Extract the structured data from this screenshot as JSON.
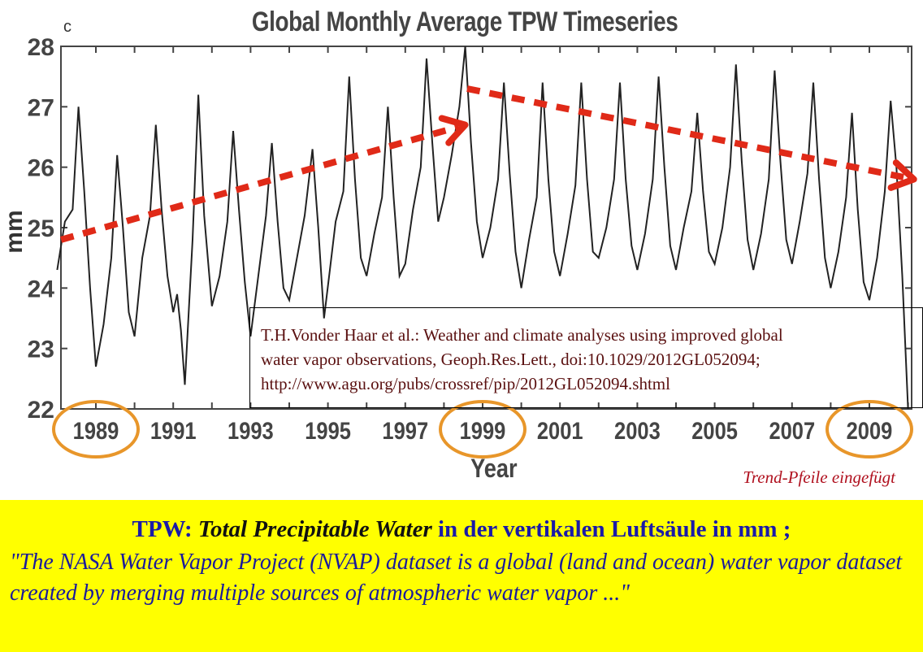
{
  "chart_data": {
    "type": "line",
    "panel_label": "c",
    "title": "Global Monthly Average TPW Timeseries",
    "xlabel": "Year",
    "ylabel": "mm",
    "ylim": [
      22,
      28
    ],
    "xlim": [
      1988,
      2010.2
    ],
    "yticks": [
      22,
      23,
      24,
      25,
      26,
      27,
      28
    ],
    "xticks": [
      "1989",
      "1991",
      "1993",
      "1995",
      "1997",
      "1999",
      "2001",
      "2003",
      "2005",
      "2007",
      "2009"
    ],
    "circled_years": [
      "1989",
      "1999",
      "2009"
    ],
    "grid": false,
    "series": [
      {
        "color": "#222222",
        "points": [
          [
            1988.0,
            24.3
          ],
          [
            1988.2,
            25.1
          ],
          [
            1988.4,
            25.3
          ],
          [
            1988.55,
            27.0
          ],
          [
            1988.7,
            25.6
          ],
          [
            1988.85,
            24.0
          ],
          [
            1989.0,
            22.7
          ],
          [
            1989.2,
            23.4
          ],
          [
            1989.4,
            24.5
          ],
          [
            1989.55,
            26.2
          ],
          [
            1989.7,
            25.0
          ],
          [
            1989.85,
            23.6
          ],
          [
            1990.0,
            23.2
          ],
          [
            1990.2,
            24.5
          ],
          [
            1990.4,
            25.2
          ],
          [
            1990.55,
            26.7
          ],
          [
            1990.7,
            25.3
          ],
          [
            1990.85,
            24.2
          ],
          [
            1991.0,
            23.6
          ],
          [
            1991.1,
            23.9
          ],
          [
            1991.2,
            23.3
          ],
          [
            1991.3,
            22.4
          ],
          [
            1991.5,
            24.8
          ],
          [
            1991.65,
            27.2
          ],
          [
            1991.8,
            25.2
          ],
          [
            1992.0,
            23.7
          ],
          [
            1992.2,
            24.2
          ],
          [
            1992.4,
            25.1
          ],
          [
            1992.55,
            26.6
          ],
          [
            1992.7,
            25.3
          ],
          [
            1992.85,
            24.1
          ],
          [
            1993.0,
            23.2
          ],
          [
            1993.2,
            24.2
          ],
          [
            1993.4,
            25.2
          ],
          [
            1993.55,
            26.4
          ],
          [
            1993.7,
            25.1
          ],
          [
            1993.85,
            24.0
          ],
          [
            1994.0,
            23.8
          ],
          [
            1994.2,
            24.5
          ],
          [
            1994.4,
            25.2
          ],
          [
            1994.6,
            26.3
          ],
          [
            1994.75,
            25.0
          ],
          [
            1994.9,
            23.5
          ],
          [
            1995.05,
            24.3
          ],
          [
            1995.2,
            25.1
          ],
          [
            1995.4,
            25.6
          ],
          [
            1995.55,
            27.5
          ],
          [
            1995.7,
            25.8
          ],
          [
            1995.85,
            24.5
          ],
          [
            1996.0,
            24.2
          ],
          [
            1996.2,
            24.9
          ],
          [
            1996.4,
            25.5
          ],
          [
            1996.55,
            27.0
          ],
          [
            1996.7,
            25.5
          ],
          [
            1996.85,
            24.2
          ],
          [
            1997.0,
            24.4
          ],
          [
            1997.2,
            25.3
          ],
          [
            1997.4,
            26.0
          ],
          [
            1997.55,
            27.8
          ],
          [
            1997.7,
            26.4
          ],
          [
            1997.85,
            25.1
          ],
          [
            1998.0,
            25.5
          ],
          [
            1998.2,
            26.2
          ],
          [
            1998.4,
            27.0
          ],
          [
            1998.55,
            28.0
          ],
          [
            1998.7,
            26.4
          ],
          [
            1998.85,
            25.1
          ],
          [
            1999.0,
            24.5
          ],
          [
            1999.2,
            25.0
          ],
          [
            1999.4,
            25.8
          ],
          [
            1999.55,
            27.4
          ],
          [
            1999.7,
            25.9
          ],
          [
            1999.85,
            24.6
          ],
          [
            2000.0,
            24.0
          ],
          [
            2000.2,
            24.8
          ],
          [
            2000.4,
            25.5
          ],
          [
            2000.55,
            27.4
          ],
          [
            2000.7,
            25.8
          ],
          [
            2000.85,
            24.6
          ],
          [
            2001.0,
            24.2
          ],
          [
            2001.2,
            24.9
          ],
          [
            2001.4,
            25.7
          ],
          [
            2001.55,
            27.4
          ],
          [
            2001.7,
            25.8
          ],
          [
            2001.85,
            24.6
          ],
          [
            2002.0,
            24.5
          ],
          [
            2002.2,
            25.0
          ],
          [
            2002.4,
            25.8
          ],
          [
            2002.55,
            27.4
          ],
          [
            2002.7,
            25.8
          ],
          [
            2002.85,
            24.7
          ],
          [
            2003.0,
            24.3
          ],
          [
            2003.2,
            24.9
          ],
          [
            2003.4,
            25.8
          ],
          [
            2003.55,
            27.5
          ],
          [
            2003.7,
            26.0
          ],
          [
            2003.85,
            24.7
          ],
          [
            2004.0,
            24.3
          ],
          [
            2004.2,
            25.0
          ],
          [
            2004.4,
            25.6
          ],
          [
            2004.55,
            26.9
          ],
          [
            2004.7,
            25.6
          ],
          [
            2004.85,
            24.6
          ],
          [
            2005.0,
            24.4
          ],
          [
            2005.2,
            25.0
          ],
          [
            2005.4,
            26.0
          ],
          [
            2005.55,
            27.7
          ],
          [
            2005.7,
            26.1
          ],
          [
            2005.85,
            24.8
          ],
          [
            2006.0,
            24.3
          ],
          [
            2006.2,
            24.9
          ],
          [
            2006.4,
            25.8
          ],
          [
            2006.55,
            27.6
          ],
          [
            2006.7,
            26.1
          ],
          [
            2006.85,
            24.8
          ],
          [
            2007.0,
            24.4
          ],
          [
            2007.2,
            25.1
          ],
          [
            2007.4,
            25.9
          ],
          [
            2007.55,
            27.4
          ],
          [
            2007.7,
            25.8
          ],
          [
            2007.85,
            24.5
          ],
          [
            2008.0,
            24.0
          ],
          [
            2008.2,
            24.6
          ],
          [
            2008.4,
            25.5
          ],
          [
            2008.55,
            26.9
          ],
          [
            2008.7,
            25.3
          ],
          [
            2008.85,
            24.1
          ],
          [
            2009.0,
            23.8
          ],
          [
            2009.2,
            24.5
          ],
          [
            2009.4,
            25.6
          ],
          [
            2009.55,
            27.1
          ],
          [
            2009.7,
            26.0
          ],
          [
            2009.85,
            24.2
          ],
          [
            2010.0,
            22.0
          ]
        ]
      }
    ],
    "trend_arrows": [
      {
        "from": [
          1988.1,
          24.8
        ],
        "to": [
          1998.55,
          26.7
        ],
        "color": "#e02a18"
      },
      {
        "from": [
          1998.6,
          27.3
        ],
        "to": [
          2010.15,
          25.8
        ],
        "color": "#e02a18"
      }
    ]
  },
  "citation": {
    "line1": "T.H.Vonder Haar et al.: Weather and climate analyses using improved global",
    "line2": "water vapor observations, Geoph.Res.Lett., doi:10.1029/2012GL052094;",
    "line3": "http://www.agu.org/pubs/crossref/pip/2012GL052094.shtml"
  },
  "note": "Trend-Pfeile eingefügt",
  "caption": {
    "key": "TPW:",
    "term": "Total Precipitable Water",
    "rest": "in der vertikalen Luftsäule in mm ;",
    "quote": "\"The NASA Water Vapor Project (NVAP) dataset is a global (land and ocean) water vapor dataset created by merging multiple sources of atmospheric water vapor ...\""
  },
  "colors": {
    "arrow": "#e02a18",
    "circle": "#e8962a",
    "caption_bg": "#ffff00",
    "caption_text": "#1a1aa8",
    "note_text": "#b0101e"
  }
}
